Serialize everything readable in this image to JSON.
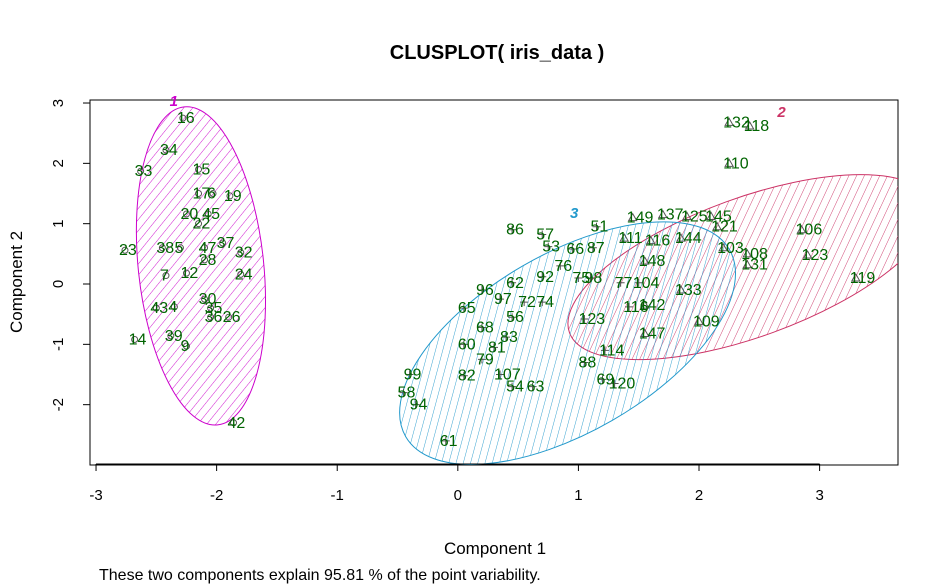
{
  "chart_data": {
    "type": "scatter",
    "title": "CLUSPLOT( iris_data )",
    "xlabel": "Component 1",
    "ylabel": "Component 2",
    "subtitle": "These two components explain 95.81 % of the point variability.",
    "xlim": [
      -3.05,
      3.65
    ],
    "ylim": [
      -3.0,
      3.05
    ],
    "xticks": [
      -3,
      -2,
      -1,
      0,
      1,
      2,
      3
    ],
    "yticks": [
      -2,
      -1,
      0,
      1,
      2,
      3
    ],
    "grid": false,
    "colors": {
      "labels": "#006400",
      "points": "#555555",
      "cluster1": "#cc00cc",
      "cluster2": "#cc3366",
      "cluster3": "#2299cc"
    },
    "clusters": [
      {
        "id": "1",
        "cx": -2.13,
        "cy": 0.3,
        "rx": 0.52,
        "ry": 2.65,
        "angle_deg": 6,
        "color": "#cc00cc",
        "label_x": -2.39,
        "label_y": 2.95
      },
      {
        "id": "2",
        "cx": 2.42,
        "cy": 0.28,
        "rx": 1.59,
        "ry": 1.15,
        "angle_deg": 20,
        "color": "#cc3366",
        "label_x": 2.65,
        "label_y": 2.77
      },
      {
        "id": "3",
        "cx": 0.91,
        "cy": -0.98,
        "rx": 1.55,
        "ry": 1.48,
        "angle_deg": 30,
        "color": "#2299cc",
        "label_x": 0.93,
        "label_y": 1.09
      }
    ],
    "points": [
      {
        "label": "16",
        "x": -2.28,
        "y": 2.75,
        "cluster": 1
      },
      {
        "label": "34",
        "x": -2.42,
        "y": 2.22,
        "cluster": 1
      },
      {
        "label": "33",
        "x": -2.63,
        "y": 1.87,
        "cluster": 1
      },
      {
        "label": "15",
        "x": -2.15,
        "y": 1.9,
        "cluster": 1
      },
      {
        "label": "17",
        "x": -2.15,
        "y": 1.5,
        "cluster": 1
      },
      {
        "label": "6",
        "x": -2.03,
        "y": 1.5,
        "cluster": 1
      },
      {
        "label": "19",
        "x": -1.89,
        "y": 1.46,
        "cluster": 1
      },
      {
        "label": "20",
        "x": -2.25,
        "y": 1.16,
        "cluster": 1
      },
      {
        "label": "45",
        "x": -2.07,
        "y": 1.16,
        "cluster": 1
      },
      {
        "label": "22",
        "x": -2.15,
        "y": 1.0,
        "cluster": 1
      },
      {
        "label": "23",
        "x": -2.76,
        "y": 0.56,
        "cluster": 1
      },
      {
        "label": "38",
        "x": -2.45,
        "y": 0.6,
        "cluster": 1
      },
      {
        "label": "5",
        "x": -2.3,
        "y": 0.6,
        "cluster": 1
      },
      {
        "label": "47",
        "x": -2.1,
        "y": 0.6,
        "cluster": 1
      },
      {
        "label": "37",
        "x": -1.95,
        "y": 0.68,
        "cluster": 1
      },
      {
        "label": "32",
        "x": -1.8,
        "y": 0.52,
        "cluster": 1
      },
      {
        "label": "28",
        "x": -2.1,
        "y": 0.4,
        "cluster": 1
      },
      {
        "label": "24",
        "x": -1.8,
        "y": 0.16,
        "cluster": 1
      },
      {
        "label": "7",
        "x": -2.42,
        "y": 0.14,
        "cluster": 1
      },
      {
        "label": "12",
        "x": -2.25,
        "y": 0.18,
        "cluster": 1
      },
      {
        "label": "30",
        "x": -2.1,
        "y": -0.25,
        "cluster": 1
      },
      {
        "label": "43",
        "x": -2.5,
        "y": -0.4,
        "cluster": 1
      },
      {
        "label": "4",
        "x": -2.35,
        "y": -0.38,
        "cluster": 1
      },
      {
        "label": "35",
        "x": -2.05,
        "y": -0.4,
        "cluster": 1
      },
      {
        "label": "36",
        "x": -2.05,
        "y": -0.55,
        "cluster": 1
      },
      {
        "label": "26",
        "x": -1.9,
        "y": -0.55,
        "cluster": 1
      },
      {
        "label": "14",
        "x": -2.68,
        "y": -0.92,
        "cluster": 1
      },
      {
        "label": "39",
        "x": -2.38,
        "y": -0.86,
        "cluster": 1
      },
      {
        "label": "9",
        "x": -2.25,
        "y": -1.03,
        "cluster": 1
      },
      {
        "label": "42",
        "x": -1.86,
        "y": -2.3,
        "cluster": 1
      },
      {
        "label": "132",
        "x": 2.25,
        "y": 2.68,
        "cluster": 2
      },
      {
        "label": "118",
        "x": 2.42,
        "y": 2.62,
        "cluster": 2
      },
      {
        "label": "110",
        "x": 2.25,
        "y": 2.0,
        "cluster": 2
      },
      {
        "label": "149",
        "x": 1.45,
        "y": 1.1,
        "cluster": 2
      },
      {
        "label": "137",
        "x": 1.7,
        "y": 1.15,
        "cluster": 2
      },
      {
        "label": "125",
        "x": 1.9,
        "y": 1.12,
        "cluster": 2
      },
      {
        "label": "145",
        "x": 2.1,
        "y": 1.12,
        "cluster": 2
      },
      {
        "label": "121",
        "x": 2.15,
        "y": 0.95,
        "cluster": 2
      },
      {
        "label": "111",
        "x": 1.38,
        "y": 0.76,
        "cluster": 2
      },
      {
        "label": "116",
        "x": 1.6,
        "y": 0.72,
        "cluster": 2
      },
      {
        "label": "144",
        "x": 1.85,
        "y": 0.76,
        "cluster": 2
      },
      {
        "label": "106",
        "x": 2.85,
        "y": 0.9,
        "cluster": 2
      },
      {
        "label": "103",
        "x": 2.2,
        "y": 0.6,
        "cluster": 2
      },
      {
        "label": "108",
        "x": 2.4,
        "y": 0.5,
        "cluster": 2
      },
      {
        "label": "123",
        "x": 2.9,
        "y": 0.48,
        "cluster": 2
      },
      {
        "label": "131",
        "x": 2.4,
        "y": 0.32,
        "cluster": 2
      },
      {
        "label": "148",
        "x": 1.55,
        "y": 0.38,
        "cluster": 2
      },
      {
        "label": "119",
        "x": 3.3,
        "y": 0.1,
        "cluster": 2
      },
      {
        "label": "133",
        "x": 1.85,
        "y": -0.1,
        "cluster": 2
      },
      {
        "label": "142",
        "x": 1.55,
        "y": -0.35,
        "cluster": 2
      },
      {
        "label": "109",
        "x": 2.0,
        "y": -0.62,
        "cluster": 2
      },
      {
        "label": "147",
        "x": 1.55,
        "y": -0.82,
        "cluster": 2
      },
      {
        "label": "86",
        "x": 0.45,
        "y": 0.9,
        "cluster": 3
      },
      {
        "label": "51",
        "x": 1.15,
        "y": 0.95,
        "cluster": 3
      },
      {
        "label": "57",
        "x": 0.7,
        "y": 0.82,
        "cluster": 3
      },
      {
        "label": "53",
        "x": 0.75,
        "y": 0.62,
        "cluster": 3
      },
      {
        "label": "66",
        "x": 0.95,
        "y": 0.58,
        "cluster": 3
      },
      {
        "label": "87",
        "x": 1.12,
        "y": 0.6,
        "cluster": 3
      },
      {
        "label": "76",
        "x": 0.85,
        "y": 0.3,
        "cluster": 3
      },
      {
        "label": "92",
        "x": 0.7,
        "y": 0.12,
        "cluster": 3
      },
      {
        "label": "62",
        "x": 0.45,
        "y": 0.02,
        "cluster": 3
      },
      {
        "label": "75",
        "x": 1.0,
        "y": 0.1,
        "cluster": 3
      },
      {
        "label": "98",
        "x": 1.1,
        "y": 0.1,
        "cluster": 3
      },
      {
        "label": "77",
        "x": 1.35,
        "y": 0.02,
        "cluster": 3
      },
      {
        "label": "104",
        "x": 1.5,
        "y": 0.02,
        "cluster": 3
      },
      {
        "label": "96",
        "x": 0.2,
        "y": -0.1,
        "cluster": 3
      },
      {
        "label": "97",
        "x": 0.35,
        "y": -0.25,
        "cluster": 3
      },
      {
        "label": "72",
        "x": 0.55,
        "y": -0.3,
        "cluster": 3
      },
      {
        "label": "74",
        "x": 0.7,
        "y": -0.3,
        "cluster": 3
      },
      {
        "label": "65",
        "x": 0.05,
        "y": -0.4,
        "cluster": 3
      },
      {
        "label": "56",
        "x": 0.45,
        "y": -0.55,
        "cluster": 3
      },
      {
        "label": "116",
        "x": 1.42,
        "y": -0.38,
        "cluster": 3
      },
      {
        "label": "123",
        "x": 1.05,
        "y": -0.58,
        "cluster": 3
      },
      {
        "label": "68",
        "x": 0.2,
        "y": -0.72,
        "cluster": 3
      },
      {
        "label": "83",
        "x": 0.4,
        "y": -0.88,
        "cluster": 3
      },
      {
        "label": "60",
        "x": 0.05,
        "y": -1.0,
        "cluster": 3
      },
      {
        "label": "81",
        "x": 0.3,
        "y": -1.05,
        "cluster": 3
      },
      {
        "label": "114",
        "x": 1.22,
        "y": -1.1,
        "cluster": 3
      },
      {
        "label": "79",
        "x": 0.2,
        "y": -1.25,
        "cluster": 3
      },
      {
        "label": "88",
        "x": 1.05,
        "y": -1.3,
        "cluster": 3
      },
      {
        "label": "99",
        "x": -0.4,
        "y": -1.5,
        "cluster": 3
      },
      {
        "label": "82",
        "x": 0.05,
        "y": -1.52,
        "cluster": 3
      },
      {
        "label": "107",
        "x": 0.35,
        "y": -1.5,
        "cluster": 3
      },
      {
        "label": "54",
        "x": 0.45,
        "y": -1.7,
        "cluster": 3
      },
      {
        "label": "63",
        "x": 0.62,
        "y": -1.7,
        "cluster": 3
      },
      {
        "label": "69",
        "x": 1.2,
        "y": -1.58,
        "cluster": 3
      },
      {
        "label": "120",
        "x": 1.3,
        "y": -1.65,
        "cluster": 3
      },
      {
        "label": "58",
        "x": -0.45,
        "y": -1.8,
        "cluster": 3
      },
      {
        "label": "94",
        "x": -0.35,
        "y": -2.0,
        "cluster": 3
      },
      {
        "label": "61",
        "x": -0.1,
        "y": -2.6,
        "cluster": 3
      }
    ]
  }
}
